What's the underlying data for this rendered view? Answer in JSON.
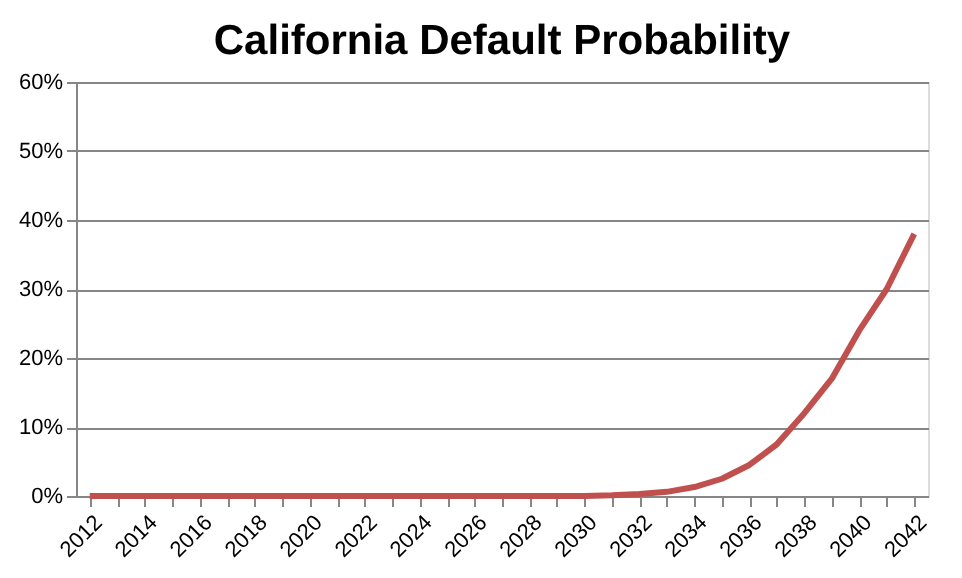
{
  "chart_data": {
    "type": "line",
    "title": "California Default Probability",
    "categories": [
      "2012",
      null,
      "2014",
      null,
      "2016",
      null,
      "2018",
      null,
      "2020",
      null,
      "2022",
      null,
      "2024",
      null,
      "2026",
      null,
      "2028",
      null,
      "2030",
      null,
      "2032",
      null,
      "2034",
      null,
      "2036",
      null,
      "2038",
      null,
      "2040",
      null,
      "2042"
    ],
    "series": [
      {
        "color": "#c0504d",
        "values": [
          0,
          0,
          0,
          0,
          0,
          0,
          0,
          0,
          0,
          0,
          0,
          0,
          0,
          0,
          0,
          0,
          0,
          0,
          0,
          0.1,
          0.3,
          0.6,
          1.3,
          2.5,
          4.5,
          7.5,
          12,
          17,
          24,
          30,
          38
        ]
      }
    ],
    "ylim": [
      0,
      60
    ],
    "yticks": [
      {
        "value": 0,
        "label": "0%"
      },
      {
        "value": 10,
        "label": "10%"
      },
      {
        "value": 20,
        "label": "20%"
      },
      {
        "value": 30,
        "label": "30%"
      },
      {
        "value": 40,
        "label": "40%"
      },
      {
        "value": 50,
        "label": "50%"
      },
      {
        "value": 60,
        "label": "60%"
      }
    ],
    "grid": "y",
    "legend": false,
    "marker": "none",
    "line_style": "solid"
  }
}
